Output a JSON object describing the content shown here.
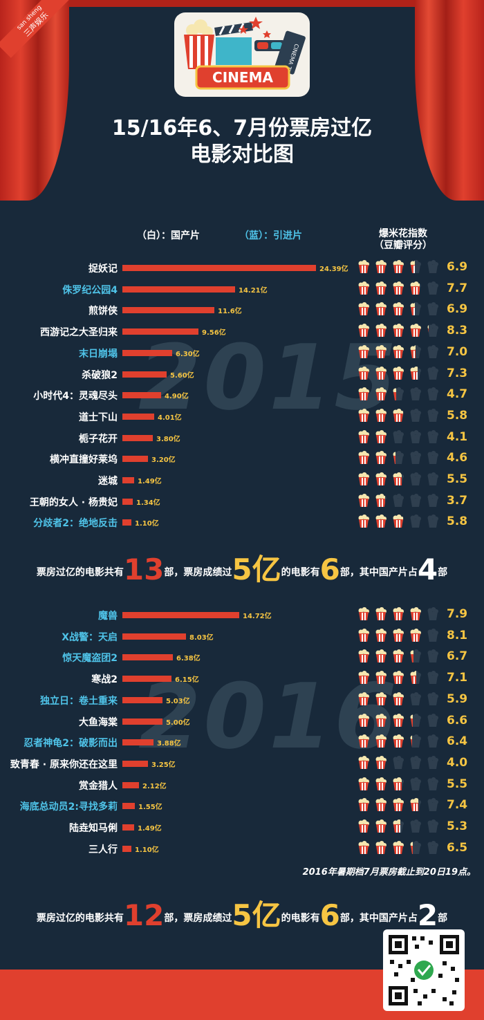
{
  "header": {
    "ribbon_en": "san sheng",
    "ribbon_cn": "三声娱乐",
    "logo_text": "CINEMA",
    "ticket_text": "CINEMA TICKET",
    "title_line1": "15/16年6、7月份票房过亿",
    "title_line2": "电影对比图"
  },
  "legend": {
    "domestic": "（白）：国产片",
    "imported": "（蓝）：引进片",
    "score_title_1": "爆米花指数",
    "score_title_2": "（豆瓣评分）"
  },
  "colors": {
    "domestic": "#ffffff",
    "imported": "#4fc3e8",
    "bar": "#e0402e",
    "value": "#f6c543",
    "bg": "#18293a"
  },
  "chart_data": [
    {
      "type": "bar",
      "orientation": "horizontal",
      "year_watermark": "2015",
      "categories": [
        "捉妖记",
        "侏罗纪公园4",
        "煎饼侠",
        "西游记之大圣归来",
        "末日崩塌",
        "杀破狼2",
        "小时代4：灵魂尽头",
        "道士下山",
        "栀子花开",
        "横冲直撞好莱坞",
        "迷城",
        "王朝的女人 · 杨贵妃",
        "分歧者2：绝地反击"
      ],
      "values": [
        24.39,
        14.21,
        11.6,
        9.56,
        6.3,
        5.6,
        4.9,
        4.01,
        3.8,
        3.2,
        1.49,
        1.34,
        1.1
      ],
      "value_labels": [
        "24.39亿",
        "14.21亿",
        "11.6亿",
        "9.56亿",
        "6.30亿",
        "5.60亿",
        "4.90亿",
        "4.01亿",
        "3.80亿",
        "3.20亿",
        "1.49亿",
        "1.34亿",
        "1.10亿"
      ],
      "imported": [
        false,
        true,
        false,
        false,
        true,
        false,
        false,
        false,
        false,
        false,
        false,
        false,
        true
      ],
      "douban_scores": [
        6.9,
        7.7,
        6.9,
        8.3,
        7.0,
        7.3,
        4.7,
        5.8,
        4.1,
        4.6,
        5.5,
        3.7,
        5.8
      ],
      "score_labels": [
        "6.9",
        "7.7",
        "6.9",
        "8.3",
        "7.0",
        "7.3",
        "4.7",
        "5.8",
        "4.1",
        "4.6",
        "5.5",
        "3.7",
        "5.8"
      ]
    },
    {
      "type": "bar",
      "orientation": "horizontal",
      "year_watermark": "2016",
      "categories": [
        "魔兽",
        "X战警：天启",
        "惊天魔盗团2",
        "寒战2",
        "独立日：卷土重来",
        "大鱼海棠",
        "忍者神龟2：破影而出",
        "致青春 · 原来你还在这里",
        "赏金猎人",
        "海底总动员2:寻找多莉",
        "陆垚知马俐",
        "三人行"
      ],
      "values": [
        14.72,
        8.03,
        6.38,
        6.15,
        5.03,
        5.0,
        3.88,
        3.25,
        2.12,
        1.55,
        1.49,
        1.1
      ],
      "value_labels": [
        "14.72亿",
        "8.03亿",
        "6.38亿",
        "6.15亿",
        "5.03亿",
        "5.00亿",
        "3.88亿",
        "3.25亿",
        "2.12亿",
        "1.55亿",
        "1.49亿",
        "1.10亿"
      ],
      "imported": [
        true,
        true,
        true,
        false,
        true,
        false,
        true,
        false,
        false,
        true,
        false,
        false
      ],
      "douban_scores": [
        7.9,
        8.1,
        6.7,
        7.1,
        5.9,
        6.6,
        6.4,
        4.0,
        5.5,
        7.4,
        5.3,
        6.5
      ],
      "score_labels": [
        "7.9",
        "8.1",
        "6.7",
        "7.1",
        "5.9",
        "6.6",
        "6.4",
        "4.0",
        "5.5",
        "7.4",
        "5.3",
        "6.5"
      ]
    }
  ],
  "summary_2015": {
    "p1": "票房过亿的电影共有",
    "n1": "13",
    "p2": "部，票房成绩过",
    "n2": "5亿",
    "p3": "的电影有",
    "n3": "6",
    "p4": "部，其中国产片占",
    "n4": "4",
    "p5": "部"
  },
  "summary_2016": {
    "p1": "票房过亿的电影共有",
    "n1": "12",
    "p2": "部，票房成绩过",
    "n2": "5亿",
    "p3": "的电影有",
    "n3": "6",
    "p4": "部，其中国产片占",
    "n4": "2",
    "p5": "部"
  },
  "note": "2016年暑期档7月票房截止到20日19点。"
}
